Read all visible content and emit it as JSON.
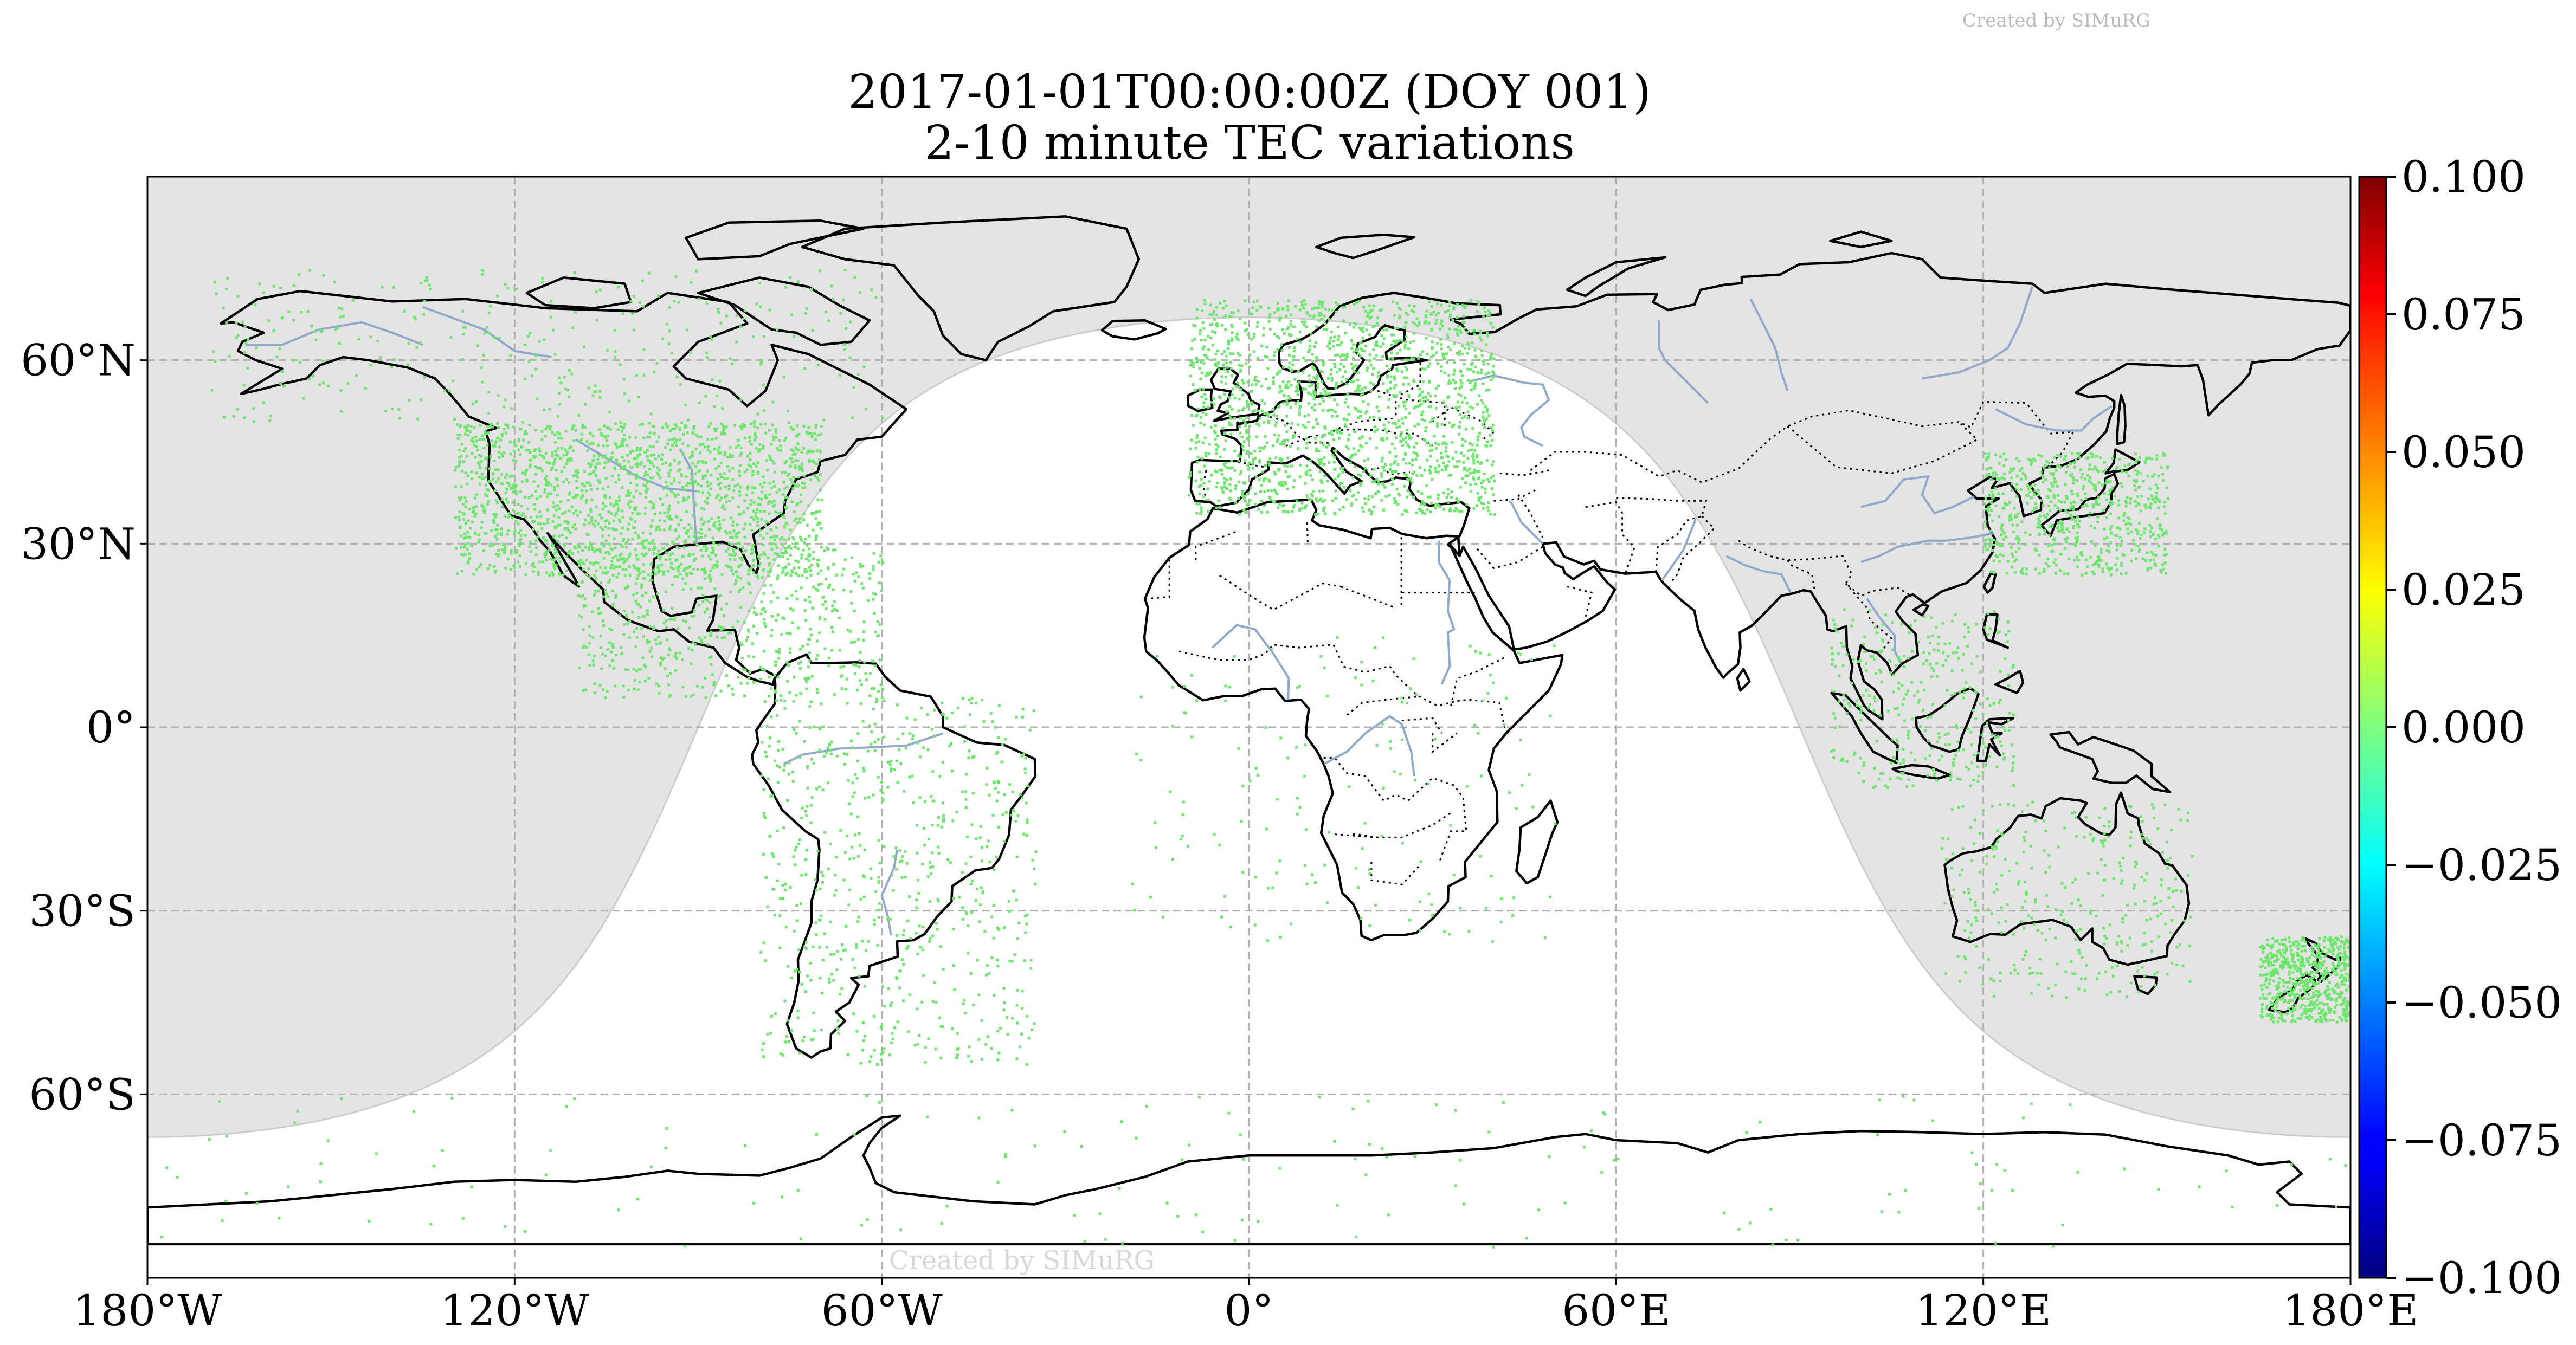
{
  "title": {
    "line1": "2017-01-01T00:00:00Z (DOY 001)",
    "line2": "2-10 minute TEC variations"
  },
  "watermark": {
    "top": "Created by SIMuRG",
    "bottom": "Created by SIMuRG"
  },
  "map": {
    "projection": "equirectangular",
    "lon_range": [
      -180,
      180
    ],
    "lat_range": [
      -90,
      90
    ],
    "gridlines": true,
    "x_ticks": [
      {
        "value": -180,
        "label": "180°W"
      },
      {
        "value": -120,
        "label": "120°W"
      },
      {
        "value": -60,
        "label": "60°W"
      },
      {
        "value": 0,
        "label": "0°"
      },
      {
        "value": 60,
        "label": "60°E"
      },
      {
        "value": 120,
        "label": "120°E"
      },
      {
        "value": 180,
        "label": "180°E"
      }
    ],
    "y_ticks": [
      {
        "value": 60,
        "label": "60°N"
      },
      {
        "value": 30,
        "label": "30°N"
      },
      {
        "value": 0,
        "label": "0°"
      },
      {
        "value": -30,
        "label": "30°S"
      },
      {
        "value": -60,
        "label": "60°S"
      }
    ],
    "night_region": "shaded",
    "colors": {
      "night": "#e4e4e4",
      "coast": "#000000",
      "rivers": "#8fa8cc",
      "grid": "#b0b0b0",
      "points": "#6ee66e"
    }
  },
  "colorbar": {
    "min": -0.1,
    "max": 0.1,
    "colormap": "jet",
    "ticks": [
      {
        "value": 0.1,
        "label": "0.100"
      },
      {
        "value": 0.075,
        "label": "0.075"
      },
      {
        "value": 0.05,
        "label": "0.050"
      },
      {
        "value": 0.025,
        "label": "0.025"
      },
      {
        "value": 0.0,
        "label": "0.000"
      },
      {
        "value": -0.025,
        "label": "−0.025"
      },
      {
        "value": -0.05,
        "label": "−0.050"
      },
      {
        "value": -0.075,
        "label": "−0.075"
      },
      {
        "value": -0.1,
        "label": "−0.100"
      }
    ]
  },
  "chart_data": {
    "type": "scatter",
    "title": "2017-01-01T00:00:00Z (DOY 001)\n2-10 minute TEC variations",
    "xlim": [
      -180,
      180
    ],
    "ylim": [
      -90,
      90
    ],
    "value_range": [
      -0.1,
      0.1
    ],
    "clusters": [
      {
        "region": "North America",
        "lon": [
          -130,
          -70
        ],
        "lat": [
          25,
          50
        ],
        "density": "very high",
        "value": 0.0
      },
      {
        "region": "Alaska / Canada",
        "lon": [
          -170,
          -60
        ],
        "lat": [
          50,
          75
        ],
        "density": "medium",
        "value": 0.0
      },
      {
        "region": "Europe",
        "lon": [
          -10,
          40
        ],
        "lat": [
          35,
          70
        ],
        "density": "very high",
        "value": 0.0
      },
      {
        "region": "Central America / Caribbean",
        "lon": [
          -110,
          -60
        ],
        "lat": [
          5,
          30
        ],
        "density": "high",
        "value": 0.0
      },
      {
        "region": "South America",
        "lon": [
          -80,
          -35
        ],
        "lat": [
          -55,
          5
        ],
        "density": "high",
        "value": 0.0
      },
      {
        "region": "Japan / East Asia",
        "lon": [
          120,
          150
        ],
        "lat": [
          25,
          45
        ],
        "density": "high",
        "value": 0.0
      },
      {
        "region": "SE Asia / Indonesia",
        "lon": [
          95,
          125
        ],
        "lat": [
          -10,
          20
        ],
        "density": "medium",
        "value": 0.0
      },
      {
        "region": "Australia",
        "lon": [
          113,
          154
        ],
        "lat": [
          -44,
          -12
        ],
        "density": "medium",
        "value": 0.0
      },
      {
        "region": "New Zealand",
        "lon": [
          165,
          180
        ],
        "lat": [
          -48,
          -34
        ],
        "density": "high",
        "value": 0.0
      },
      {
        "region": "Africa",
        "lon": [
          -20,
          50
        ],
        "lat": [
          -35,
          15
        ],
        "density": "low",
        "value": 0.0
      },
      {
        "region": "Antarctica",
        "lon": [
          -180,
          180
        ],
        "lat": [
          -85,
          -60
        ],
        "density": "low",
        "value": 0.0
      }
    ]
  }
}
